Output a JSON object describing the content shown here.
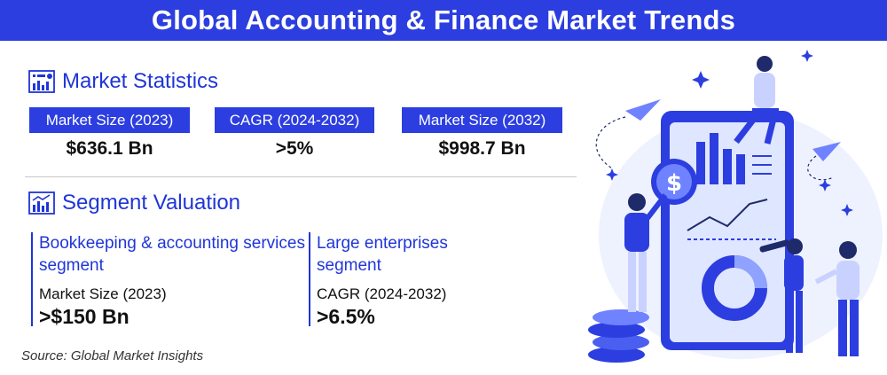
{
  "title": "Global Accounting & Finance Market Trends",
  "market_statistics": {
    "heading": "Market Statistics",
    "items": [
      {
        "label": "Market Size (2023)",
        "value": "$636.1 Bn"
      },
      {
        "label": "CAGR (2024-2032)",
        "value": ">5%"
      },
      {
        "label": "Market Size (2032)",
        "value": "$998.7 Bn"
      }
    ]
  },
  "segment_valuation": {
    "heading": "Segment Valuation",
    "items": [
      {
        "name": "Bookkeeping & accounting services segment",
        "metric": "Market Size (2023)",
        "value": ">$150 Bn"
      },
      {
        "name": "Large enterprises segment",
        "metric": "CAGR (2024-2032)",
        "value": ">6.5%"
      }
    ]
  },
  "source": "Source: Global Market Insights",
  "colors": {
    "brand_blue": "#2c3ee0",
    "heading_blue": "#1f35d8",
    "light_blue": "#dfe6ff"
  },
  "icons": [
    "statistics-icon",
    "segment-chart-icon",
    "dollar-coin-icon",
    "paper-plane-icon",
    "sparkle-icon"
  ]
}
